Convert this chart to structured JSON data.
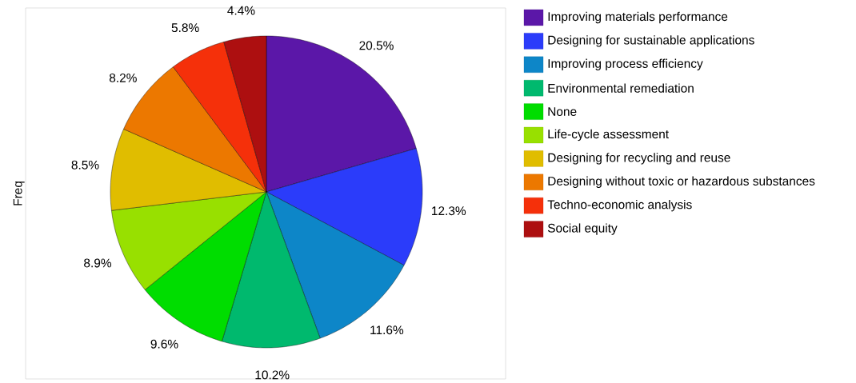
{
  "chart_data": {
    "type": "pie",
    "ylabel": "Freq",
    "legend": "right",
    "categories": [
      "Improving materials performance",
      "Designing for sustainable applications",
      "Improving process efficiency",
      "Environmental remediation",
      "None",
      "Life-cycle assessment",
      "Designing for recycling and reuse",
      "Designing without toxic or hazardous substances",
      "Techno-economic analysis",
      "Social equity"
    ],
    "values": [
      20.5,
      12.3,
      11.6,
      10.2,
      9.6,
      8.9,
      8.5,
      8.2,
      5.8,
      4.4
    ],
    "value_labels": [
      "20.5%",
      "12.3%",
      "11.6%",
      "10.2%",
      "9.6%",
      "8.9%",
      "8.5%",
      "8.2%",
      "5.8%",
      "4.4%"
    ],
    "colors": [
      "#5b17a8",
      "#2b3cfa",
      "#0d86c8",
      "#00b96e",
      "#00dd00",
      "#98e000",
      "#e0bd00",
      "#ec7800",
      "#f5300a",
      "#ad0f10"
    ]
  }
}
